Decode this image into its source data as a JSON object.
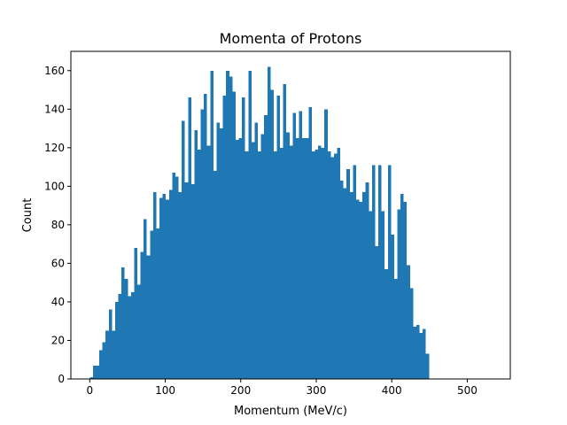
{
  "chart_data": {
    "type": "bar",
    "title": "Momenta of Protons",
    "xlabel": "Momentum (MeV/c)",
    "ylabel": "Count",
    "bin_edges_start": 0,
    "bin_width": 4.2,
    "values": [
      1,
      7,
      7,
      15,
      19,
      25,
      36,
      25,
      40,
      44,
      58,
      52,
      43,
      45,
      68,
      49,
      66,
      83,
      64,
      77,
      97,
      78,
      94,
      96,
      93,
      98,
      107,
      105,
      97,
      134,
      102,
      146,
      101,
      129,
      119,
      140,
      148,
      121,
      160,
      108,
      133,
      130,
      147,
      160,
      157,
      149,
      124,
      125,
      146,
      118,
      160,
      123,
      133,
      118,
      127,
      137,
      162,
      150,
      118,
      147,
      120,
      153,
      128,
      121,
      138,
      125,
      139,
      125,
      125,
      141,
      118,
      119,
      121,
      120,
      140,
      118,
      115,
      117,
      120,
      103,
      99,
      109,
      97,
      111,
      93,
      92,
      97,
      102,
      87,
      111,
      69,
      111,
      87,
      57,
      111,
      75,
      52,
      88,
      96,
      92,
      59,
      47,
      27,
      28,
      24,
      26,
      13
    ]
  },
  "axes": {
    "xlim": [
      -25.0,
      557.0
    ],
    "ylim": [
      0,
      170
    ],
    "x_ticks": [
      0,
      100,
      200,
      300,
      400,
      500
    ],
    "y_ticks": [
      0,
      20,
      40,
      60,
      80,
      100,
      120,
      140,
      160
    ],
    "grid": false
  },
  "style": {
    "bar_color": "#1f77b4",
    "axis_color": "#000000",
    "background": "#ffffff"
  }
}
